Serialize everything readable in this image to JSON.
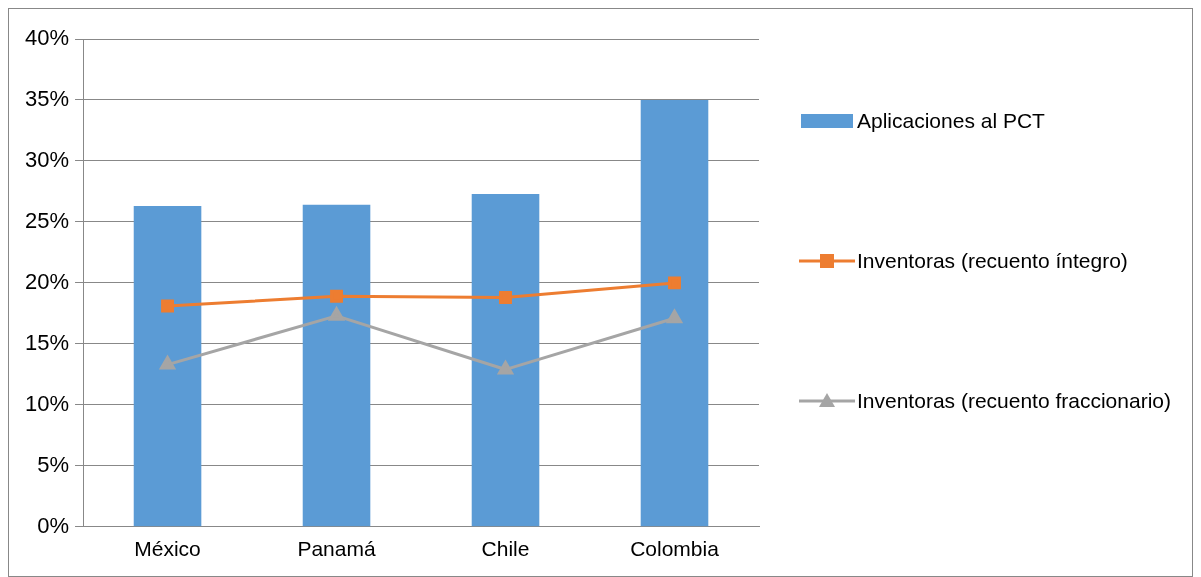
{
  "chart_data": {
    "type": "bar",
    "categories": [
      "México",
      "Panamá",
      "Chile",
      "Colombia"
    ],
    "series": [
      {
        "name": "Aplicaciones al PCT",
        "color": "#5b9bd5",
        "values": [
          26.3,
          26.4,
          27.3,
          35.0
        ]
      },
      {
        "name": "Inventoras (recuento íntegro)",
        "type": "line",
        "color": "#ed7d31",
        "marker": "square",
        "values": [
          18.1,
          18.9,
          18.8,
          20.0
        ]
      },
      {
        "name": "Inventoras (recuento fraccionario)",
        "type": "line",
        "color": "#a5a5a5",
        "marker": "triangle",
        "values": [
          13.3,
          17.3,
          12.9,
          17.1
        ]
      }
    ],
    "ylim": [
      0,
      40
    ],
    "yticks": [
      {
        "value": 0,
        "label": "0%"
      },
      {
        "value": 5,
        "label": "5%"
      },
      {
        "value": 10,
        "label": "10%"
      },
      {
        "value": 15,
        "label": "15%"
      },
      {
        "value": 20,
        "label": "20%"
      },
      {
        "value": 25,
        "label": "25%"
      },
      {
        "value": 30,
        "label": "30%"
      },
      {
        "value": 35,
        "label": "35%"
      },
      {
        "value": 40,
        "label": "40%"
      }
    ],
    "grid": "y",
    "legend": "right"
  }
}
